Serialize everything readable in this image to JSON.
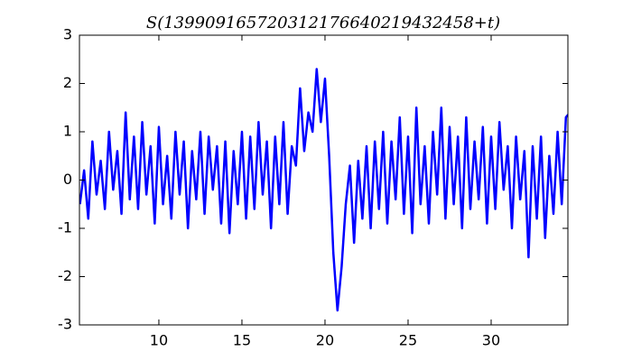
{
  "chart_data": {
    "type": "line",
    "title": "S(139909165720312176640219432458+t)",
    "x": [
      5.25,
      5.5,
      5.75,
      6,
      6.25,
      6.5,
      6.75,
      7,
      7.25,
      7.5,
      7.75,
      8,
      8.25,
      8.5,
      8.75,
      9,
      9.25,
      9.5,
      9.75,
      10,
      10.25,
      10.5,
      10.75,
      11,
      11.25,
      11.5,
      11.75,
      12,
      12.25,
      12.5,
      12.75,
      13,
      13.25,
      13.5,
      13.75,
      14,
      14.25,
      14.5,
      14.75,
      15,
      15.25,
      15.5,
      15.75,
      16,
      16.25,
      16.5,
      16.75,
      17,
      17.25,
      17.5,
      17.75,
      18,
      18.25,
      18.5,
      18.75,
      19,
      19.25,
      19.5,
      19.75,
      20,
      20.25,
      20.5,
      20.75,
      21,
      21.25,
      21.5,
      21.75,
      22,
      22.25,
      22.5,
      22.75,
      23,
      23.25,
      23.5,
      23.75,
      24,
      24.25,
      24.5,
      24.75,
      25,
      25.25,
      25.5,
      25.75,
      26,
      26.25,
      26.5,
      26.75,
      27,
      27.25,
      27.5,
      27.75,
      28,
      28.25,
      28.5,
      28.75,
      29,
      29.25,
      29.5,
      29.75,
      30,
      30.25,
      30.5,
      30.75,
      31,
      31.25,
      31.5,
      31.75,
      32,
      32.25,
      32.5,
      32.75,
      33,
      33.25,
      33.5,
      33.75,
      34,
      34.25,
      34.5,
      34.75
    ],
    "series": [
      {
        "color": "#0000ff",
        "values": [
          -0.5,
          0.2,
          -0.8,
          0.8,
          -0.3,
          0.4,
          -0.6,
          1.0,
          -0.2,
          0.6,
          -0.7,
          1.4,
          -0.4,
          0.9,
          -0.6,
          1.2,
          -0.3,
          0.7,
          -0.9,
          1.1,
          -0.5,
          0.5,
          -0.8,
          1.0,
          -0.3,
          0.8,
          -1.0,
          0.6,
          -0.4,
          1.0,
          -0.7,
          0.9,
          -0.2,
          0.7,
          -0.9,
          0.8,
          -1.1,
          0.6,
          -0.5,
          1.0,
          -0.8,
          0.9,
          -0.6,
          1.2,
          -0.3,
          0.8,
          -1.0,
          0.9,
          -0.5,
          1.2,
          -0.7,
          0.7,
          0.3,
          1.9,
          0.6,
          1.4,
          1.0,
          2.3,
          1.2,
          2.1,
          0.5,
          -1.5,
          -2.7,
          -1.8,
          -0.5,
          0.3,
          -1.3,
          0.4,
          -0.8,
          0.7,
          -1.0,
          0.8,
          -0.6,
          1.0,
          -0.9,
          0.8,
          -0.4,
          1.3,
          -0.7,
          0.9,
          -1.1,
          1.5,
          -0.5,
          0.7,
          -0.9,
          1.0,
          -0.3,
          1.5,
          -0.8,
          1.1,
          -0.5,
          0.9,
          -1.0,
          1.3,
          -0.6,
          0.8,
          -0.4,
          1.1,
          -0.9,
          0.9,
          -0.6,
          1.2,
          -0.2,
          0.7,
          -1.0,
          0.9,
          -0.4,
          0.6,
          -1.6,
          0.7,
          -0.8,
          0.9,
          -1.2,
          0.5,
          -0.7,
          1.0,
          -0.5,
          1.3,
          1.4
        ]
      }
    ],
    "xlim": [
      5.22,
      34.62
    ],
    "xticks": [
      10,
      15,
      20,
      25,
      30
    ],
    "ylim": [
      -3,
      3
    ],
    "yticks": [
      -3,
      -2,
      -1,
      0,
      1,
      2,
      3
    ]
  }
}
